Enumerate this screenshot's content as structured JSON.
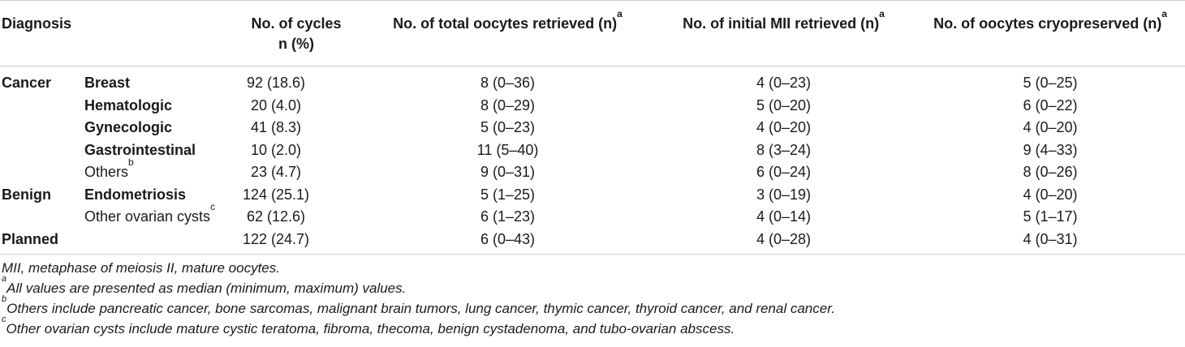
{
  "table": {
    "headers": {
      "diagnosis": "Diagnosis",
      "cycles_line1": "No. of cycles",
      "cycles_line2": "n (%)",
      "total_oocytes": "No. of total oocytes retrieved (n)",
      "total_oocytes_sup": "a",
      "initial_mii": "No. of initial MII retrieved (n)",
      "initial_mii_sup": "a",
      "cryopreserved": "No. of oocytes cryopreserved (n)",
      "cryopreserved_sup": "a"
    },
    "rows": [
      {
        "group": "Cancer",
        "sub": "Breast",
        "sub_sup": "",
        "cycles": "92 (18.6)",
        "total": "8 (0–36)",
        "mii": "4 (0–23)",
        "cryo": "5 (0–25)"
      },
      {
        "group": "",
        "sub": "Hematologic",
        "sub_sup": "",
        "cycles": "20 (4.0)",
        "total": "8 (0–29)",
        "mii": "5 (0–20)",
        "cryo": "6 (0–22)"
      },
      {
        "group": "",
        "sub": "Gynecologic",
        "sub_sup": "",
        "cycles": "41 (8.3)",
        "total": "5 (0–23)",
        "mii": "4 (0–20)",
        "cryo": "4 (0–20)"
      },
      {
        "group": "",
        "sub": "Gastrointestinal",
        "sub_sup": "",
        "cycles": "10 (2.0)",
        "total": "11 (5–40)",
        "mii": "8 (3–24)",
        "cryo": "9 (4–33)"
      },
      {
        "group": "",
        "sub": "Others",
        "sub_sup": "b",
        "cycles": "23 (4.7)",
        "total": "9 (0–31)",
        "mii": "6 (0–24)",
        "cryo": "8 (0–26)"
      },
      {
        "group": "Benign",
        "sub": "Endometriosis",
        "sub_sup": "",
        "cycles": "124 (25.1)",
        "total": "5 (1–25)",
        "mii": "3 (0–19)",
        "cryo": "4 (0–20)"
      },
      {
        "group": "",
        "sub": "Other ovarian cysts",
        "sub_sup": "c",
        "cycles": "62 (12.6)",
        "total": "6 (1–23)",
        "mii": "4 (0–14)",
        "cryo": "5 (1–17)"
      },
      {
        "group": "Planned",
        "sub": "",
        "sub_sup": "",
        "cycles": "122 (24.7)",
        "total": "6 (0–43)",
        "mii": "4 (0–28)",
        "cryo": "4 (0–31)"
      }
    ]
  },
  "footnotes": {
    "abbrev": "MII, metaphase of meiosis II, mature oocytes.",
    "a_mark": "a",
    "a_text": "All values are presented as median (minimum, maximum) values.",
    "b_mark": "b",
    "b_text": "Others include pancreatic cancer, bone sarcomas, malignant brain tumors, lung cancer, thymic cancer, thyroid cancer, and renal cancer.",
    "c_mark": "c",
    "c_text": "Other ovarian cysts include mature cystic teratoma, fibroma, thecoma, benign cystadenoma, and tubo-ovarian abscess."
  }
}
